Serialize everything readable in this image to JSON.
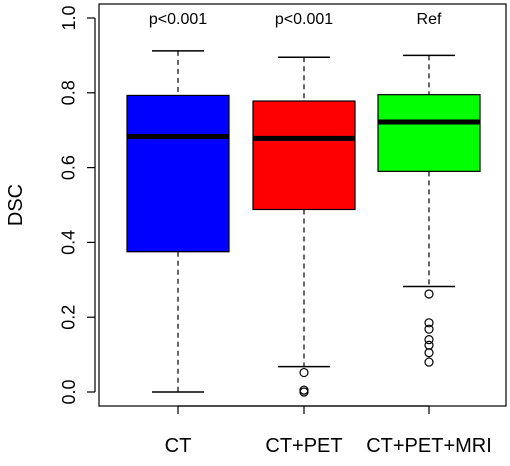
{
  "chart_data": {
    "type": "box",
    "ylabel": "DSC",
    "ylim": [
      0.0,
      1.0
    ],
    "yticks": [
      0.0,
      0.2,
      0.4,
      0.6,
      0.8,
      1.0
    ],
    "ytick_labels": [
      "0.0",
      "0.2",
      "0.4",
      "0.6",
      "0.8",
      "1.0"
    ],
    "categories": [
      "CT",
      "CT+PET",
      "CT+PET+MRI"
    ],
    "annotations": [
      "p<0.001",
      "p<0.001",
      "Ref"
    ],
    "boxes": [
      {
        "name": "CT",
        "color": "#0000ff",
        "whisker_low": 0.0,
        "q1": 0.375,
        "median": 0.683,
        "q3": 0.793,
        "whisker_high": 0.912,
        "outliers": []
      },
      {
        "name": "CT+PET",
        "color": "#ff0000",
        "whisker_low": 0.068,
        "q1": 0.488,
        "median": 0.678,
        "q3": 0.778,
        "whisker_high": 0.895,
        "outliers": [
          0.052,
          0.005,
          0.0
        ]
      },
      {
        "name": "CT+PET+MRI",
        "color": "#00ff00",
        "whisker_low": 0.282,
        "q1": 0.59,
        "median": 0.722,
        "q3": 0.795,
        "whisker_high": 0.9,
        "outliers": [
          0.262,
          0.185,
          0.168,
          0.14,
          0.125,
          0.105,
          0.08
        ]
      }
    ]
  }
}
